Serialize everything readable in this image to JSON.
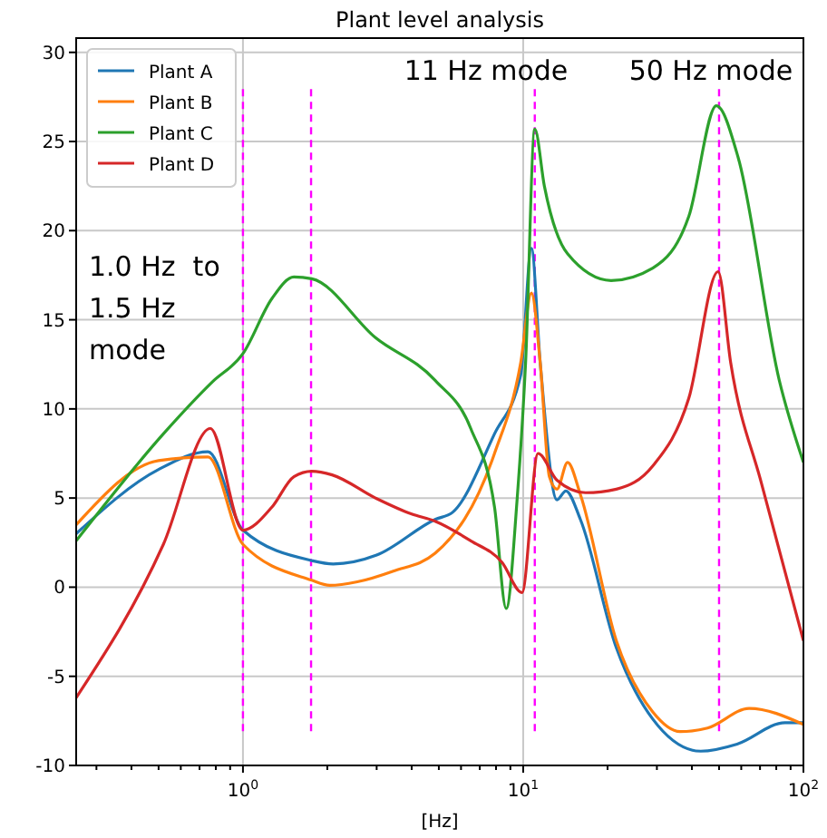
{
  "chart_data": {
    "type": "line",
    "title": "Plant level analysis",
    "xlabel": "[Hz]",
    "log": "x",
    "grid": true,
    "legend": "top left",
    "line_style": "solid",
    "xlim": [
      0.254,
      100
    ],
    "ylim": [
      -10,
      30.8
    ],
    "xticks": [
      {
        "value": 0.3,
        "label": null
      },
      {
        "value": 0.4,
        "label": null
      },
      {
        "value": 0.5,
        "label": null
      },
      {
        "value": 0.6,
        "label": null
      },
      {
        "value": 0.7,
        "label": null
      },
      {
        "value": 0.8,
        "label": null
      },
      {
        "value": 0.9,
        "label": null
      },
      {
        "value": 1,
        "label": "10$^{0}$"
      },
      {
        "value": 2,
        "label": null
      },
      {
        "value": 3,
        "label": null
      },
      {
        "value": 4,
        "label": null
      },
      {
        "value": 5,
        "label": null
      },
      {
        "value": 6,
        "label": null
      },
      {
        "value": 7,
        "label": null
      },
      {
        "value": 8,
        "label": null
      },
      {
        "value": 9,
        "label": null
      },
      {
        "value": 10,
        "label": "10$^{1}$"
      },
      {
        "value": 20,
        "label": null
      },
      {
        "value": 30,
        "label": null
      },
      {
        "value": 40,
        "label": null
      },
      {
        "value": 50,
        "label": null
      },
      {
        "value": 60,
        "label": null
      },
      {
        "value": 70,
        "label": null
      },
      {
        "value": 80,
        "label": null
      },
      {
        "value": 90,
        "label": null
      },
      {
        "value": 100,
        "label": "10$^{2}$"
      }
    ],
    "yticks": [
      -10,
      -5,
      0,
      5,
      10,
      15,
      20,
      25,
      30
    ],
    "series": [
      {
        "name": "Plant A",
        "color": "#1f77b4",
        "x": [
          0.254,
          0.5,
          0.75,
          1.0,
          1.75,
          2.1,
          3,
          4.85,
          5.6,
          7.9,
          9.8,
          10.7,
          11.5,
          13.2,
          14.2,
          16,
          21.5,
          29,
          43,
          58,
          86,
          100
        ],
        "values": [
          3.0,
          6.6,
          7.6,
          3.2,
          1.5,
          1.3,
          1.8,
          3.8,
          4.2,
          8.6,
          11.9,
          19.0,
          12.6,
          4.9,
          5.4,
          3.8,
          -3.4,
          -7.4,
          -9.2,
          -8.8,
          -7.6,
          -7.6
        ]
      },
      {
        "name": "Plant B",
        "color": "#ff7f0e",
        "x": [
          0.254,
          0.5,
          0.75,
          1.0,
          1.75,
          2.04,
          2.56,
          3.44,
          4.85,
          7.9,
          9.8,
          10.7,
          11.5,
          12.4,
          13.2,
          14.4,
          16,
          21.5,
          29,
          36.3,
          45.5,
          64,
          100
        ],
        "values": [
          3.5,
          7.1,
          7.3,
          2.4,
          0.4,
          0.1,
          0.3,
          0.9,
          1.9,
          7.5,
          12.6,
          16.5,
          12.6,
          6.2,
          5.5,
          7.0,
          5.2,
          -3.0,
          -7.0,
          -8.1,
          -7.9,
          -6.8,
          -7.7
        ]
      },
      {
        "name": "Plant C",
        "color": "#2ca02c",
        "x": [
          0.254,
          0.52,
          0.776,
          1.0,
          1.27,
          1.52,
          1.76,
          2.97,
          4.85,
          6.5,
          7.9,
          8.7,
          9.5,
          10.2,
          11,
          11.9,
          14.4,
          20.6,
          29,
          39,
          48.9,
          58.5,
          82,
          100
        ],
        "values": [
          2.6,
          8.6,
          11.5,
          13.1,
          16.2,
          17.4,
          17.3,
          14.0,
          11.6,
          8.9,
          4.5,
          -1.2,
          4.8,
          12.6,
          25.7,
          22.5,
          18.7,
          17.2,
          17.9,
          20.8,
          27.0,
          24.1,
          11.6,
          7.0
        ]
      },
      {
        "name": "Plant D",
        "color": "#d62728",
        "x": [
          0.254,
          0.52,
          0.765,
          1.0,
          1.27,
          1.52,
          1.76,
          2.08,
          2.97,
          4.0,
          4.85,
          6.5,
          8.4,
          9.9,
          11.3,
          13.2,
          16.7,
          21.5,
          29,
          39,
          49.6,
          55,
          70.9,
          100
        ],
        "values": [
          -6.2,
          2.4,
          8.9,
          3.2,
          4.5,
          6.2,
          6.5,
          6.3,
          5.0,
          4.1,
          3.7,
          2.6,
          1.4,
          -0.3,
          7.5,
          6.0,
          5.3,
          5.5,
          6.8,
          10.6,
          17.7,
          12.6,
          5.8,
          -3.0
        ]
      }
    ],
    "ref_lines": [
      {
        "axis": "x",
        "value": 1,
        "color": "#ff00ff",
        "line_style": "dashed"
      },
      {
        "axis": "x",
        "value": 1.75,
        "color": "#ff00ff",
        "line_style": "dashed"
      },
      {
        "axis": "x",
        "value": 11,
        "color": "#ff00ff",
        "line_style": "dashed"
      },
      {
        "axis": "x",
        "value": 50,
        "color": "#ff00ff",
        "line_style": "dashed"
      }
    ],
    "annotations": [
      "11 Hz mode",
      "50 Hz mode",
      "1.0 Hz  to\n1.5 Hz\nmode"
    ]
  }
}
